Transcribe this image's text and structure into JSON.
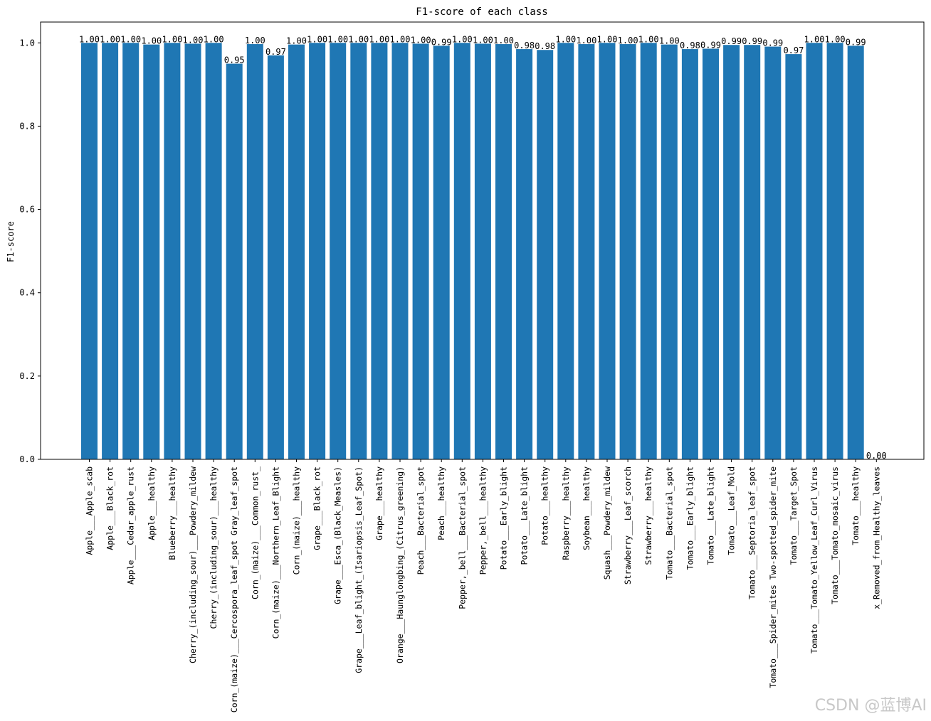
{
  "chart_data": {
    "type": "bar",
    "title": "F1-score of each class",
    "xlabel": "",
    "ylabel": "F1-score",
    "ylim": [
      0,
      1.05
    ],
    "yticks": [
      0.0,
      0.2,
      0.4,
      0.6,
      0.8,
      1.0
    ],
    "ytick_labels": [
      "0.0",
      "0.2",
      "0.4",
      "0.6",
      "0.8",
      "1.0"
    ],
    "bar_color": "#1f77b4",
    "categories": [
      "Apple___Apple_scab",
      "Apple___Black_rot",
      "Apple___Cedar_apple_rust",
      "Apple___healthy",
      "Blueberry___healthy",
      "Cherry_(including_sour)___Powdery_mildew",
      "Cherry_(including_sour)___healthy",
      "Corn_(maize)___Cercospora_leaf_spot Gray_leaf_spot",
      "Corn_(maize)___Common_rust_",
      "Corn_(maize)___Northern_Leaf_Blight",
      "Corn_(maize)___healthy",
      "Grape___Black_rot",
      "Grape___Esca_(Black_Measles)",
      "Grape___Leaf_blight_(Isariopsis_Leaf_Spot)",
      "Grape___healthy",
      "Orange___Haunglongbing_(Citrus_greening)",
      "Peach___Bacterial_spot",
      "Peach___healthy",
      "Pepper,_bell___Bacterial_spot",
      "Pepper,_bell___healthy",
      "Potato___Early_blight",
      "Potato___Late_blight",
      "Potato___healthy",
      "Raspberry___healthy",
      "Soybean___healthy",
      "Squash___Powdery_mildew",
      "Strawberry___Leaf_scorch",
      "Strawberry___healthy",
      "Tomato___Bacterial_spot",
      "Tomato___Early_blight",
      "Tomato___Late_blight",
      "Tomato___Leaf_Mold",
      "Tomato___Septoria_leaf_spot",
      "Tomato___Spider_mites Two-spotted_spider_mite",
      "Tomato___Target_Spot",
      "Tomato___Tomato_Yellow_Leaf_Curl_Virus",
      "Tomato___Tomato_mosaic_virus",
      "Tomato___healthy",
      "x_Removed_from_Healthy_leaves"
    ],
    "values": [
      1.0,
      1.0,
      1.0,
      0.996,
      1.0,
      0.998,
      1.0,
      0.95,
      0.997,
      0.97,
      0.996,
      1.0,
      1.0,
      1.0,
      1.0,
      1.0,
      0.998,
      0.993,
      1.0,
      0.998,
      0.997,
      0.985,
      0.983,
      1.0,
      0.997,
      1.0,
      0.997,
      1.0,
      0.996,
      0.985,
      0.986,
      0.995,
      0.995,
      0.991,
      0.973,
      1.0,
      1.0,
      0.993,
      0.0
    ],
    "data_labels": [
      "1.00",
      "1.00",
      "1.00",
      "1.00",
      "1.00",
      "1.00",
      "1.00",
      "0.95",
      "1.00",
      "0.97",
      "1.00",
      "1.00",
      "1.00",
      "1.00",
      "1.00",
      "1.00",
      "1.00",
      "0.99",
      "1.00",
      "1.00",
      "1.00",
      "0.98",
      "0.98",
      "1.00",
      "1.00",
      "1.00",
      "1.00",
      "1.00",
      "1.00",
      "0.98",
      "0.99",
      "0.99",
      "0.99",
      "0.99",
      "0.97",
      "1.00",
      "1.00",
      "0.99",
      "0.00"
    ]
  },
  "watermark": "CSDN @蓝博AI"
}
